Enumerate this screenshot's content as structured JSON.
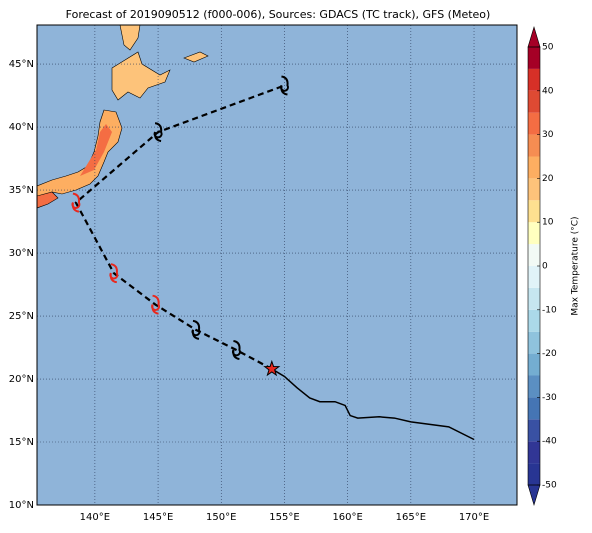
{
  "map": {
    "title": "Forecast of 2019090512 (f000-006), Sources: GDACS (TC track), GFS (Meteo)",
    "background": "#8fb4d9",
    "lonlim": [
      135.42,
      173.4
    ],
    "latlim": [
      10,
      48.1
    ],
    "lonticks": [
      {
        "value": 140,
        "label": "140°E"
      },
      {
        "value": 145,
        "label": "145°E"
      },
      {
        "value": 150,
        "label": "150°E"
      },
      {
        "value": 155,
        "label": "155°E"
      },
      {
        "value": 160,
        "label": "160°E"
      },
      {
        "value": 165,
        "label": "165°E"
      },
      {
        "value": 170,
        "label": "170°E"
      }
    ],
    "latticks": [
      {
        "value": 10,
        "label": "10°N"
      },
      {
        "value": 15,
        "label": "15°N"
      },
      {
        "value": 20,
        "label": "20°N"
      },
      {
        "value": 25,
        "label": "25°N"
      },
      {
        "value": 30,
        "label": "30°N"
      },
      {
        "value": 35,
        "label": "35°N"
      },
      {
        "value": 40,
        "label": "40°N"
      },
      {
        "value": 45,
        "label": "45°N"
      }
    ],
    "forecast_track": {
      "lon": [
        154,
        151.2,
        148,
        144.8,
        141.5,
        138.5,
        145,
        155
      ],
      "lat": [
        20.8,
        22.3,
        23.9,
        25.9,
        28.4,
        34,
        39.6,
        43.3
      ]
    },
    "past_track": {
      "lon": [
        154,
        155,
        156,
        157,
        157.8,
        159,
        159.8,
        160.2,
        160.8,
        162.5,
        163.7,
        165,
        168,
        170
      ],
      "lat": [
        20.8,
        20.2,
        19.3,
        18.5,
        18.2,
        18.2,
        17.9,
        17.1,
        16.9,
        17,
        16.9,
        16.6,
        16.2,
        15.2
      ]
    },
    "current_position": {
      "lon": 154,
      "lat": 20.8,
      "color": "#e8281e"
    },
    "storm_symbols": [
      {
        "lon": 151.2,
        "lat": 22.3,
        "color": "#000000"
      },
      {
        "lon": 148,
        "lat": 23.9,
        "color": "#000000"
      },
      {
        "lon": 144.8,
        "lat": 25.9,
        "color": "#e8281e"
      },
      {
        "lon": 141.5,
        "lat": 28.4,
        "color": "#e8281e"
      },
      {
        "lon": 138.5,
        "lat": 34,
        "color": "#e8281e"
      },
      {
        "lon": 145,
        "lat": 39.6,
        "color": "#000000"
      },
      {
        "lon": 155,
        "lat": 43.3,
        "color": "#000000"
      }
    ],
    "colorbar": {
      "label": "Max Temperature (°C)",
      "lim": [
        -50,
        50
      ],
      "ticks": [
        -50,
        -40,
        -30,
        -20,
        -10,
        0,
        10,
        20,
        30,
        40,
        50
      ],
      "levels": [
        -50,
        -45,
        -40,
        -35,
        -30,
        -25,
        -20,
        -15,
        -10,
        -5,
        0,
        5,
        10,
        15,
        20,
        25,
        30,
        35,
        40,
        45,
        50
      ],
      "colors": [
        "#283593",
        "#313695",
        "#3951a3",
        "#4575b4",
        "#5b8fc2",
        "#74add1",
        "#8fc3dd",
        "#abd9e9",
        "#c6e6f0",
        "#e0f3f8",
        "#f2faf5",
        "#ffffbf",
        "#fee090",
        "#fdc37a",
        "#fdae61",
        "#f68d52",
        "#f46d43",
        "#de4a33",
        "#d73027",
        "#a50026"
      ]
    }
  }
}
